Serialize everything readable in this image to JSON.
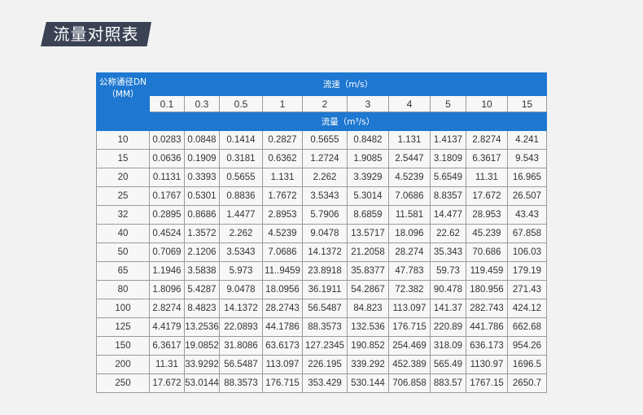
{
  "title": "流量对照表",
  "table": {
    "dn_header_line1": "公称通径DN",
    "dn_header_line2": "（MM）",
    "velocity_header": "流速（m/s）",
    "flow_header": "流量（m³/s）",
    "velocities": [
      "0.1",
      "0.3",
      "0.5",
      "1",
      "2",
      "3",
      "4",
      "5",
      "10",
      "15"
    ],
    "rows": [
      {
        "dn": "10",
        "values": [
          "0.0283",
          "0.0848",
          "0.1414",
          "0.2827",
          "0.5655",
          "0.8482",
          "1.131",
          "1.4137",
          "2.8274",
          "4.241"
        ]
      },
      {
        "dn": "15",
        "values": [
          "0.0636",
          "0.1909",
          "0.3181",
          "0.6362",
          "1.2724",
          "1.9085",
          "2.5447",
          "3.1809",
          "6.3617",
          "9.543"
        ]
      },
      {
        "dn": "20",
        "values": [
          "0.1131",
          "0.3393",
          "0.5655",
          "1.131",
          "2.262",
          "3.3929",
          "4.5239",
          "5.6549",
          "11.31",
          "16.965"
        ]
      },
      {
        "dn": "25",
        "values": [
          "0.1767",
          "0.5301",
          "0.8836",
          "1.7672",
          "3.5343",
          "5.3014",
          "7.0686",
          "8.8357",
          "17.672",
          "26.507"
        ]
      },
      {
        "dn": "32",
        "values": [
          "0.2895",
          "0.8686",
          "1.4477",
          "2.8953",
          "5.7906",
          "8.6859",
          "11.581",
          "14.477",
          "28.953",
          "43.43"
        ]
      },
      {
        "dn": "40",
        "values": [
          "0.4524",
          "1.3572",
          "2.262",
          "4.5239",
          "9.0478",
          "13.5717",
          "18.096",
          "22.62",
          "45.239",
          "67.858"
        ]
      },
      {
        "dn": "50",
        "values": [
          "0.7069",
          "2.1206",
          "3.5343",
          "7.0686",
          "14.1372",
          "21.2058",
          "28.274",
          "35.343",
          "70.686",
          "106.03"
        ]
      },
      {
        "dn": "65",
        "values": [
          "1.1946",
          "3.5838",
          "5.973",
          "11..9459",
          "23.8918",
          "35.8377",
          "47.783",
          "59.73",
          "119.459",
          "179.19"
        ]
      },
      {
        "dn": "80",
        "values": [
          "1.8096",
          "5.4287",
          "9.0478",
          "18.0956",
          "36.1911",
          "54.2867",
          "72.382",
          "90.478",
          "180.956",
          "271.43"
        ]
      },
      {
        "dn": "100",
        "values": [
          "2.8274",
          "8.4823",
          "14.1372",
          "28.2743",
          "56.5487",
          "84.823",
          "113.097",
          "141.37",
          "282.743",
          "424.12"
        ]
      },
      {
        "dn": "125",
        "values": [
          "4.4179",
          "13.2536",
          "22.0893",
          "44.1786",
          "88.3573",
          "132.536",
          "176.715",
          "220.89",
          "441.786",
          "662.68"
        ]
      },
      {
        "dn": "150",
        "values": [
          "6.3617",
          "19.0852",
          "31.8086",
          "63.6173",
          "127.2345",
          "190.852",
          "254.469",
          "318.09",
          "636.173",
          "954.26"
        ]
      },
      {
        "dn": "200",
        "values": [
          "11.31",
          "33.9292",
          "56.5487",
          "113.097",
          "226.195",
          "339.292",
          "452.389",
          "565.49",
          "1130.97",
          "1696.5"
        ]
      },
      {
        "dn": "250",
        "values": [
          "17.672",
          "53.0144",
          "88.3573",
          "176.715",
          "353.429",
          "530.144",
          "706.858",
          "883.57",
          "1767.15",
          "2650.7"
        ]
      }
    ]
  },
  "colors": {
    "header_blue": "#1e77d0",
    "title_bg": "#3a4254"
  }
}
